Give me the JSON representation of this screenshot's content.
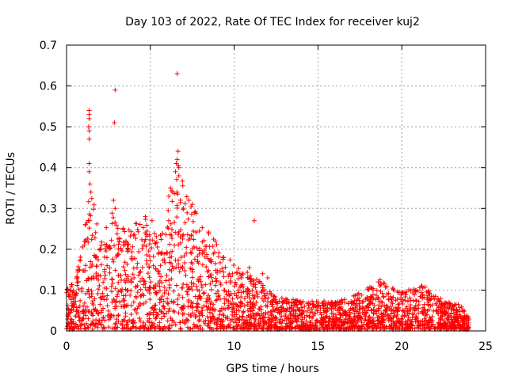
{
  "chart_data": {
    "type": "scatter",
    "title": "Day 103 of 2022, Rate Of TEC Index for receiver kuj2",
    "xlabel": "GPS time / hours",
    "ylabel": "ROTI / TECUs",
    "xlim": [
      0,
      25
    ],
    "ylim": [
      0,
      0.7
    ],
    "xticks": [
      0,
      5,
      10,
      15,
      20,
      25
    ],
    "yticks": [
      0,
      0.1,
      0.2,
      0.3,
      0.4,
      0.5,
      0.6,
      0.7
    ],
    "xtick_labels": [
      "0",
      "5",
      "10",
      "15",
      "20",
      "25"
    ],
    "ytick_labels": [
      "0",
      "0.1",
      "0.2",
      "0.3",
      "0.4",
      "0.5",
      "0.6",
      "0.7"
    ],
    "grid": true,
    "marker": "+",
    "series": [
      {
        "name": "ROTI",
        "color": "#ff0000",
        "envelope_note": "dense point cloud; outliers listed in points",
        "density_profile": [
          {
            "x": 0.0,
            "max": 0.1
          },
          {
            "x": 0.5,
            "max": 0.12
          },
          {
            "x": 1.0,
            "max": 0.22
          },
          {
            "x": 1.4,
            "max": 0.35
          },
          {
            "x": 2.0,
            "max": 0.24
          },
          {
            "x": 2.8,
            "max": 0.3
          },
          {
            "x": 3.5,
            "max": 0.24
          },
          {
            "x": 4.5,
            "max": 0.28
          },
          {
            "x": 5.5,
            "max": 0.24
          },
          {
            "x": 6.2,
            "max": 0.33
          },
          {
            "x": 6.6,
            "max": 0.42
          },
          {
            "x": 7.4,
            "max": 0.31
          },
          {
            "x": 8.5,
            "max": 0.24
          },
          {
            "x": 9.5,
            "max": 0.18
          },
          {
            "x": 10.5,
            "max": 0.15
          },
          {
            "x": 11.5,
            "max": 0.12
          },
          {
            "x": 12.5,
            "max": 0.08
          },
          {
            "x": 14.0,
            "max": 0.07
          },
          {
            "x": 15.5,
            "max": 0.07
          },
          {
            "x": 17.0,
            "max": 0.08
          },
          {
            "x": 18.7,
            "max": 0.12
          },
          {
            "x": 20.0,
            "max": 0.09
          },
          {
            "x": 21.2,
            "max": 0.11
          },
          {
            "x": 22.5,
            "max": 0.07
          },
          {
            "x": 23.5,
            "max": 0.06
          },
          {
            "x": 24.0,
            "max": 0.03
          }
        ],
        "points": [
          [
            1.35,
            0.54
          ],
          [
            1.35,
            0.53
          ],
          [
            1.35,
            0.52
          ],
          [
            1.32,
            0.5
          ],
          [
            1.35,
            0.49
          ],
          [
            1.35,
            0.47
          ],
          [
            1.35,
            0.41
          ],
          [
            1.35,
            0.39
          ],
          [
            1.4,
            0.36
          ],
          [
            1.45,
            0.34
          ],
          [
            2.9,
            0.59
          ],
          [
            2.85,
            0.51
          ],
          [
            2.8,
            0.32
          ],
          [
            2.9,
            0.3
          ],
          [
            6.6,
            0.63
          ],
          [
            6.65,
            0.44
          ],
          [
            6.6,
            0.42
          ],
          [
            6.55,
            0.41
          ],
          [
            6.7,
            0.4
          ],
          [
            6.5,
            0.39
          ],
          [
            6.7,
            0.38
          ],
          [
            6.2,
            0.35
          ],
          [
            6.3,
            0.34
          ],
          [
            6.1,
            0.33
          ],
          [
            11.2,
            0.27
          ],
          [
            7.3,
            0.32
          ],
          [
            7.5,
            0.31
          ],
          [
            5.1,
            0.27
          ],
          [
            4.7,
            0.28
          ],
          [
            18.7,
            0.125
          ],
          [
            18.6,
            0.12
          ],
          [
            21.2,
            0.11
          ],
          [
            21.25,
            0.105
          ],
          [
            20.0,
            0.095
          ],
          [
            11.7,
            0.14
          ],
          [
            10.9,
            0.155
          ],
          [
            12.0,
            0.13
          ]
        ]
      }
    ]
  }
}
